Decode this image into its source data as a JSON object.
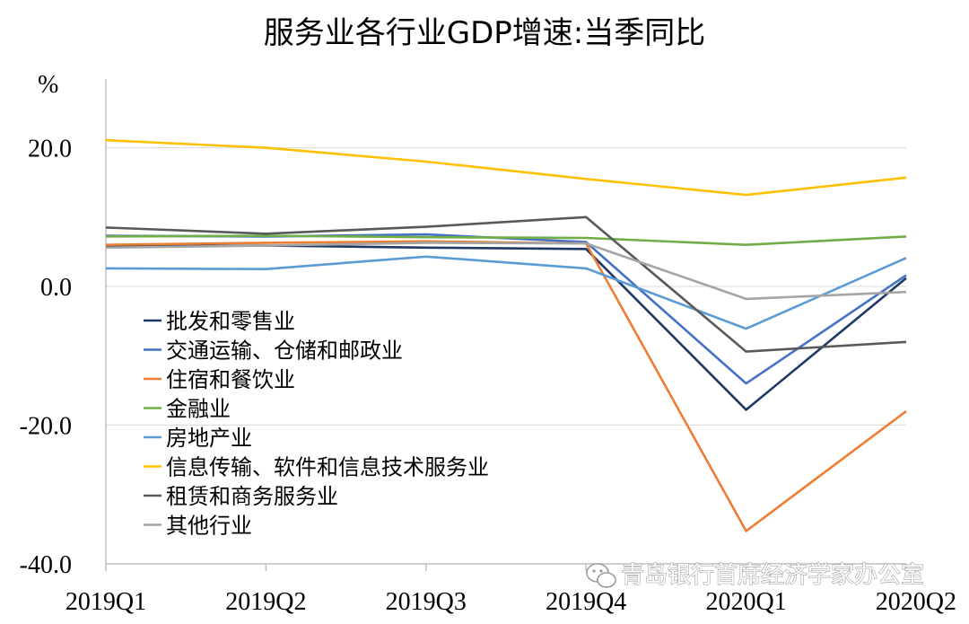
{
  "chart_data": {
    "type": "line",
    "title": "服务业各行业GDP增速:当季同比",
    "ylabel": "%",
    "xlabel": "",
    "categories": [
      "2019Q1",
      "2019Q2",
      "2019Q3",
      "2019Q4",
      "2020Q1",
      "2020Q2"
    ],
    "ylim": [
      -40,
      30
    ],
    "yticks": [
      20,
      0,
      -20,
      -40
    ],
    "ytick_labels": [
      "20.0",
      "0.0",
      "-20.0",
      "-40.0"
    ],
    "grid": true,
    "legend_position": "left-center",
    "series": [
      {
        "name": "批发和零售业",
        "color": "#1f3864",
        "values": [
          5.8,
          5.9,
          5.6,
          5.4,
          -17.8,
          1.2
        ]
      },
      {
        "name": "交通运输、仓储和邮政业",
        "color": "#4472c4",
        "values": [
          7.3,
          7.2,
          7.5,
          6.4,
          -14.0,
          1.6
        ]
      },
      {
        "name": "住宿和餐饮业",
        "color": "#ed7d31",
        "values": [
          6.0,
          6.3,
          6.5,
          6.2,
          -35.3,
          -18.0
        ]
      },
      {
        "name": "金融业",
        "color": "#70ad47",
        "values": [
          7.2,
          7.3,
          7.1,
          7.0,
          6.0,
          7.2
        ]
      },
      {
        "name": "房地产业",
        "color": "#5b9bd5",
        "values": [
          2.6,
          2.5,
          4.3,
          2.6,
          -6.1,
          4.1
        ]
      },
      {
        "name": "信息传输、软件和信息技术服务业",
        "color": "#ffc000",
        "values": [
          21.1,
          20.0,
          18.0,
          15.5,
          13.2,
          15.7
        ]
      },
      {
        "name": "租赁和商务服务业",
        "color": "#595959",
        "values": [
          8.5,
          7.6,
          8.6,
          10.0,
          -9.4,
          -8.0
        ]
      },
      {
        "name": "其他行业",
        "color": "#a5a5a5",
        "values": [
          5.6,
          5.9,
          6.3,
          6.2,
          -1.8,
          -0.8
        ]
      }
    ]
  },
  "watermark": {
    "icon": "wechat-icon",
    "text": "青岛银行首席经济学家办公室"
  }
}
